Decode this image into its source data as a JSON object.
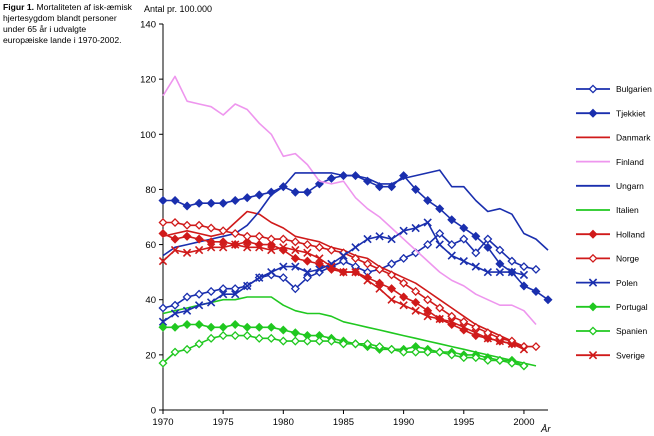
{
  "caption": {
    "prefix": "Figur 1.",
    "text": "Mortaliteten af isk-æmisk hjertesygdom blandt personer under 65 år i udvalgte europæiske lande i 1970-2002."
  },
  "chart_data": {
    "type": "line",
    "title": "",
    "ylabel": "Antal pr. 100.000",
    "xlabel": "År",
    "xlim": [
      1970,
      2002
    ],
    "ylim": [
      0,
      140
    ],
    "xticks": [
      1970,
      1975,
      1980,
      1985,
      1990,
      1995,
      2000
    ],
    "yticks": [
      0,
      20,
      40,
      60,
      80,
      100,
      120,
      140
    ],
    "legend_position": "right",
    "x": [
      1970,
      1971,
      1972,
      1973,
      1974,
      1975,
      1976,
      1977,
      1978,
      1979,
      1980,
      1981,
      1982,
      1983,
      1984,
      1985,
      1986,
      1987,
      1988,
      1989,
      1990,
      1991,
      1992,
      1993,
      1994,
      1995,
      1996,
      1997,
      1998,
      1999,
      2000,
      2001,
      2002
    ],
    "series": [
      {
        "name": "Bulgarien",
        "color": "#1a2fae",
        "marker": "diamond-open",
        "values": [
          37,
          38,
          41,
          42,
          43,
          44,
          44,
          45,
          48,
          49,
          48,
          44,
          48,
          50,
          52,
          54,
          52,
          50,
          51,
          53,
          55,
          57,
          60,
          64,
          60,
          62,
          57,
          62,
          58,
          54,
          52,
          51,
          null
        ]
      },
      {
        "name": "Tjekkiet",
        "color": "#1a2fae",
        "marker": "diamond-filled",
        "values": [
          76,
          76,
          74,
          75,
          75,
          75,
          76,
          77,
          78,
          79,
          81,
          79,
          79,
          82,
          84,
          85,
          85,
          83,
          81,
          81,
          85,
          80,
          76,
          73,
          69,
          66,
          63,
          59,
          53,
          50,
          45,
          43,
          40
        ]
      },
      {
        "name": "Danmark",
        "color": "#d01a1a",
        "marker": "none",
        "values": [
          63,
          64,
          65,
          64,
          63,
          64,
          68,
          72,
          71,
          68,
          66,
          63,
          62,
          61,
          59,
          58,
          56,
          55,
          52,
          50,
          48,
          46,
          43,
          40,
          37,
          34,
          31,
          29,
          27,
          25,
          23,
          null,
          null
        ]
      },
      {
        "name": "Finland",
        "color": "#ee96ee",
        "marker": "none",
        "values": [
          114,
          121,
          112,
          111,
          110,
          107,
          111,
          109,
          104,
          100,
          92,
          93,
          89,
          83,
          82,
          83,
          77,
          73,
          70,
          66,
          62,
          58,
          54,
          50,
          47,
          45,
          42,
          40,
          38,
          38,
          36,
          31,
          null
        ]
      },
      {
        "name": "Ungarn",
        "color": "#1a2fae",
        "marker": "none",
        "values": [
          56,
          59,
          60,
          61,
          62,
          63,
          64,
          67,
          72,
          78,
          81,
          86,
          86,
          86,
          86,
          85,
          85,
          84,
          82,
          82,
          84,
          85,
          86,
          87,
          81,
          81,
          76,
          72,
          73,
          71,
          64,
          62,
          58
        ]
      },
      {
        "name": "Italien",
        "color": "#20c820",
        "marker": "none",
        "values": [
          35,
          36,
          37,
          38,
          39,
          40,
          40,
          41,
          41,
          41,
          38,
          36,
          35,
          35,
          34,
          32,
          31,
          30,
          29,
          28,
          27,
          26,
          25,
          24,
          23,
          22,
          21,
          20,
          19,
          18,
          17,
          16,
          null
        ]
      },
      {
        "name": "Holland",
        "color": "#d01a1a",
        "marker": "diamond-filled",
        "values": [
          64,
          62,
          63,
          62,
          61,
          61,
          60,
          61,
          60,
          60,
          58,
          55,
          54,
          53,
          51,
          50,
          50,
          48,
          46,
          44,
          41,
          39,
          36,
          33,
          31,
          29,
          27,
          26,
          25,
          24,
          23,
          null,
          null
        ]
      },
      {
        "name": "Norge",
        "color": "#d01a1a",
        "marker": "diamond-open",
        "values": [
          68,
          68,
          67,
          67,
          66,
          65,
          64,
          63,
          63,
          62,
          62,
          61,
          60,
          59,
          58,
          57,
          55,
          53,
          51,
          49,
          46,
          43,
          40,
          37,
          34,
          32,
          30,
          28,
          26,
          25,
          23,
          23,
          null
        ]
      },
      {
        "name": "Polen",
        "color": "#1a2fae",
        "marker": "x",
        "values": [
          32,
          35,
          36,
          38,
          39,
          42,
          42,
          45,
          48,
          50,
          52,
          52,
          50,
          51,
          53,
          56,
          59,
          62,
          63,
          62,
          65,
          66,
          68,
          60,
          56,
          54,
          52,
          50,
          50,
          50,
          49,
          null,
          null
        ]
      },
      {
        "name": "Portugal",
        "color": "#20c820",
        "marker": "diamond-filled",
        "values": [
          30,
          30,
          31,
          31,
          30,
          30,
          31,
          30,
          30,
          30,
          29,
          28,
          27,
          27,
          26,
          25,
          24,
          23,
          22,
          22,
          22,
          23,
          22,
          21,
          21,
          20,
          20,
          19,
          18,
          18,
          16,
          null,
          null
        ]
      },
      {
        "name": "Spanien",
        "color": "#20c820",
        "marker": "diamond-open",
        "values": [
          17,
          21,
          22,
          24,
          26,
          27,
          27,
          27,
          26,
          26,
          25,
          25,
          25,
          25,
          25,
          24,
          24,
          24,
          23,
          22,
          21,
          21,
          21,
          21,
          20,
          19,
          19,
          18,
          18,
          17,
          16,
          null,
          null
        ]
      },
      {
        "name": "Sverige",
        "color": "#d01a1a",
        "marker": "x",
        "values": [
          54,
          58,
          57,
          58,
          59,
          59,
          60,
          59,
          59,
          58,
          59,
          58,
          57,
          55,
          52,
          50,
          50,
          47,
          44,
          40,
          38,
          36,
          34,
          33,
          32,
          30,
          28,
          26,
          25,
          24,
          22,
          null,
          null
        ]
      }
    ]
  }
}
